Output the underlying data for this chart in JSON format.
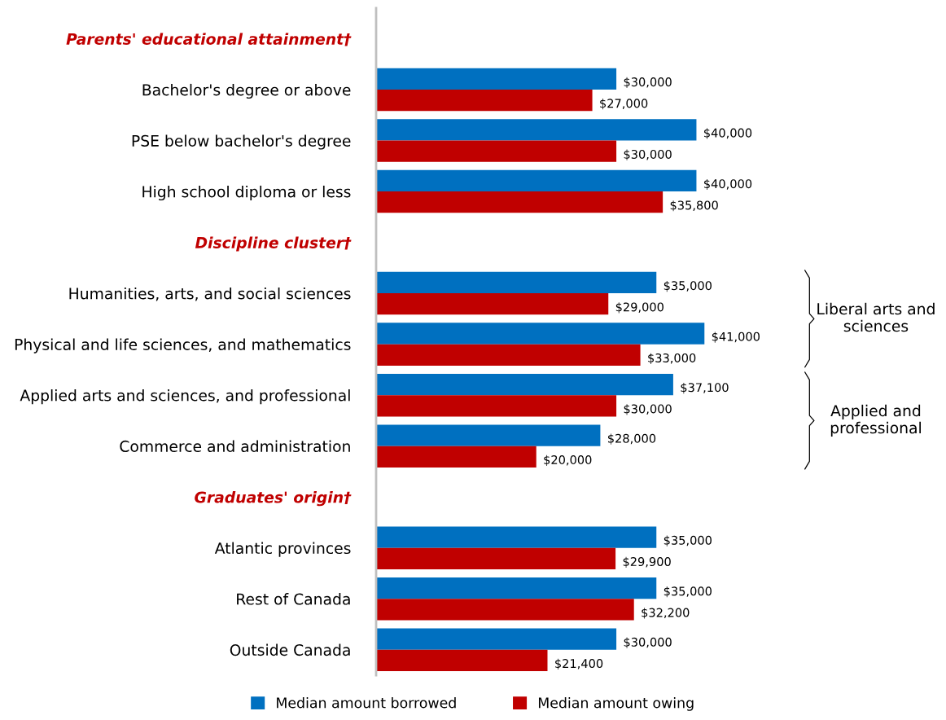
{
  "chart_data": {
    "type": "bar",
    "orientation": "horizontal",
    "categories": [
      "Parents' educational attainment†",
      "Bachelor's degree or above",
      "PSE below bachelor's degree",
      "High school diploma or less",
      "Discipline cluster†",
      "Humanities, arts, and social sciences",
      "Physical and life sciences, and mathematics",
      "Applied arts and sciences, and professional",
      "Commerce and administration",
      "Graduates' origin†",
      "Atlantic provinces",
      "Rest of Canada",
      "Outside Canada"
    ],
    "series": [
      {
        "name": "Median amount borrowed",
        "color": "#0070c0",
        "values": [
          null,
          30000,
          40000,
          40000,
          null,
          35000,
          41000,
          37100,
          28000,
          null,
          35000,
          35000,
          30000
        ],
        "value_labels": [
          null,
          "$30,000",
          "$40,000",
          "$40,000",
          null,
          "$35,000",
          "$41,000",
          "$37,100",
          "$28,000",
          null,
          "$35,000",
          "$35,000",
          "$30,000"
        ]
      },
      {
        "name": "Median amount owing",
        "color": "#c00000",
        "values": [
          null,
          27000,
          30000,
          35800,
          null,
          29000,
          33000,
          30000,
          20000,
          null,
          29900,
          32200,
          21400
        ],
        "value_labels": [
          null,
          "$27,000",
          "$30,000",
          "$35,800",
          null,
          "$29,000",
          "$33,000",
          "$30,000",
          "$20,000",
          null,
          "$29,900",
          "$32,200",
          "$21,400"
        ]
      }
    ],
    "annotations": [
      "Liberal arts and\nsciences",
      "Applied and\nprofessional"
    ],
    "tick_labels": "y",
    "grid": false,
    "legend": "bottom"
  }
}
